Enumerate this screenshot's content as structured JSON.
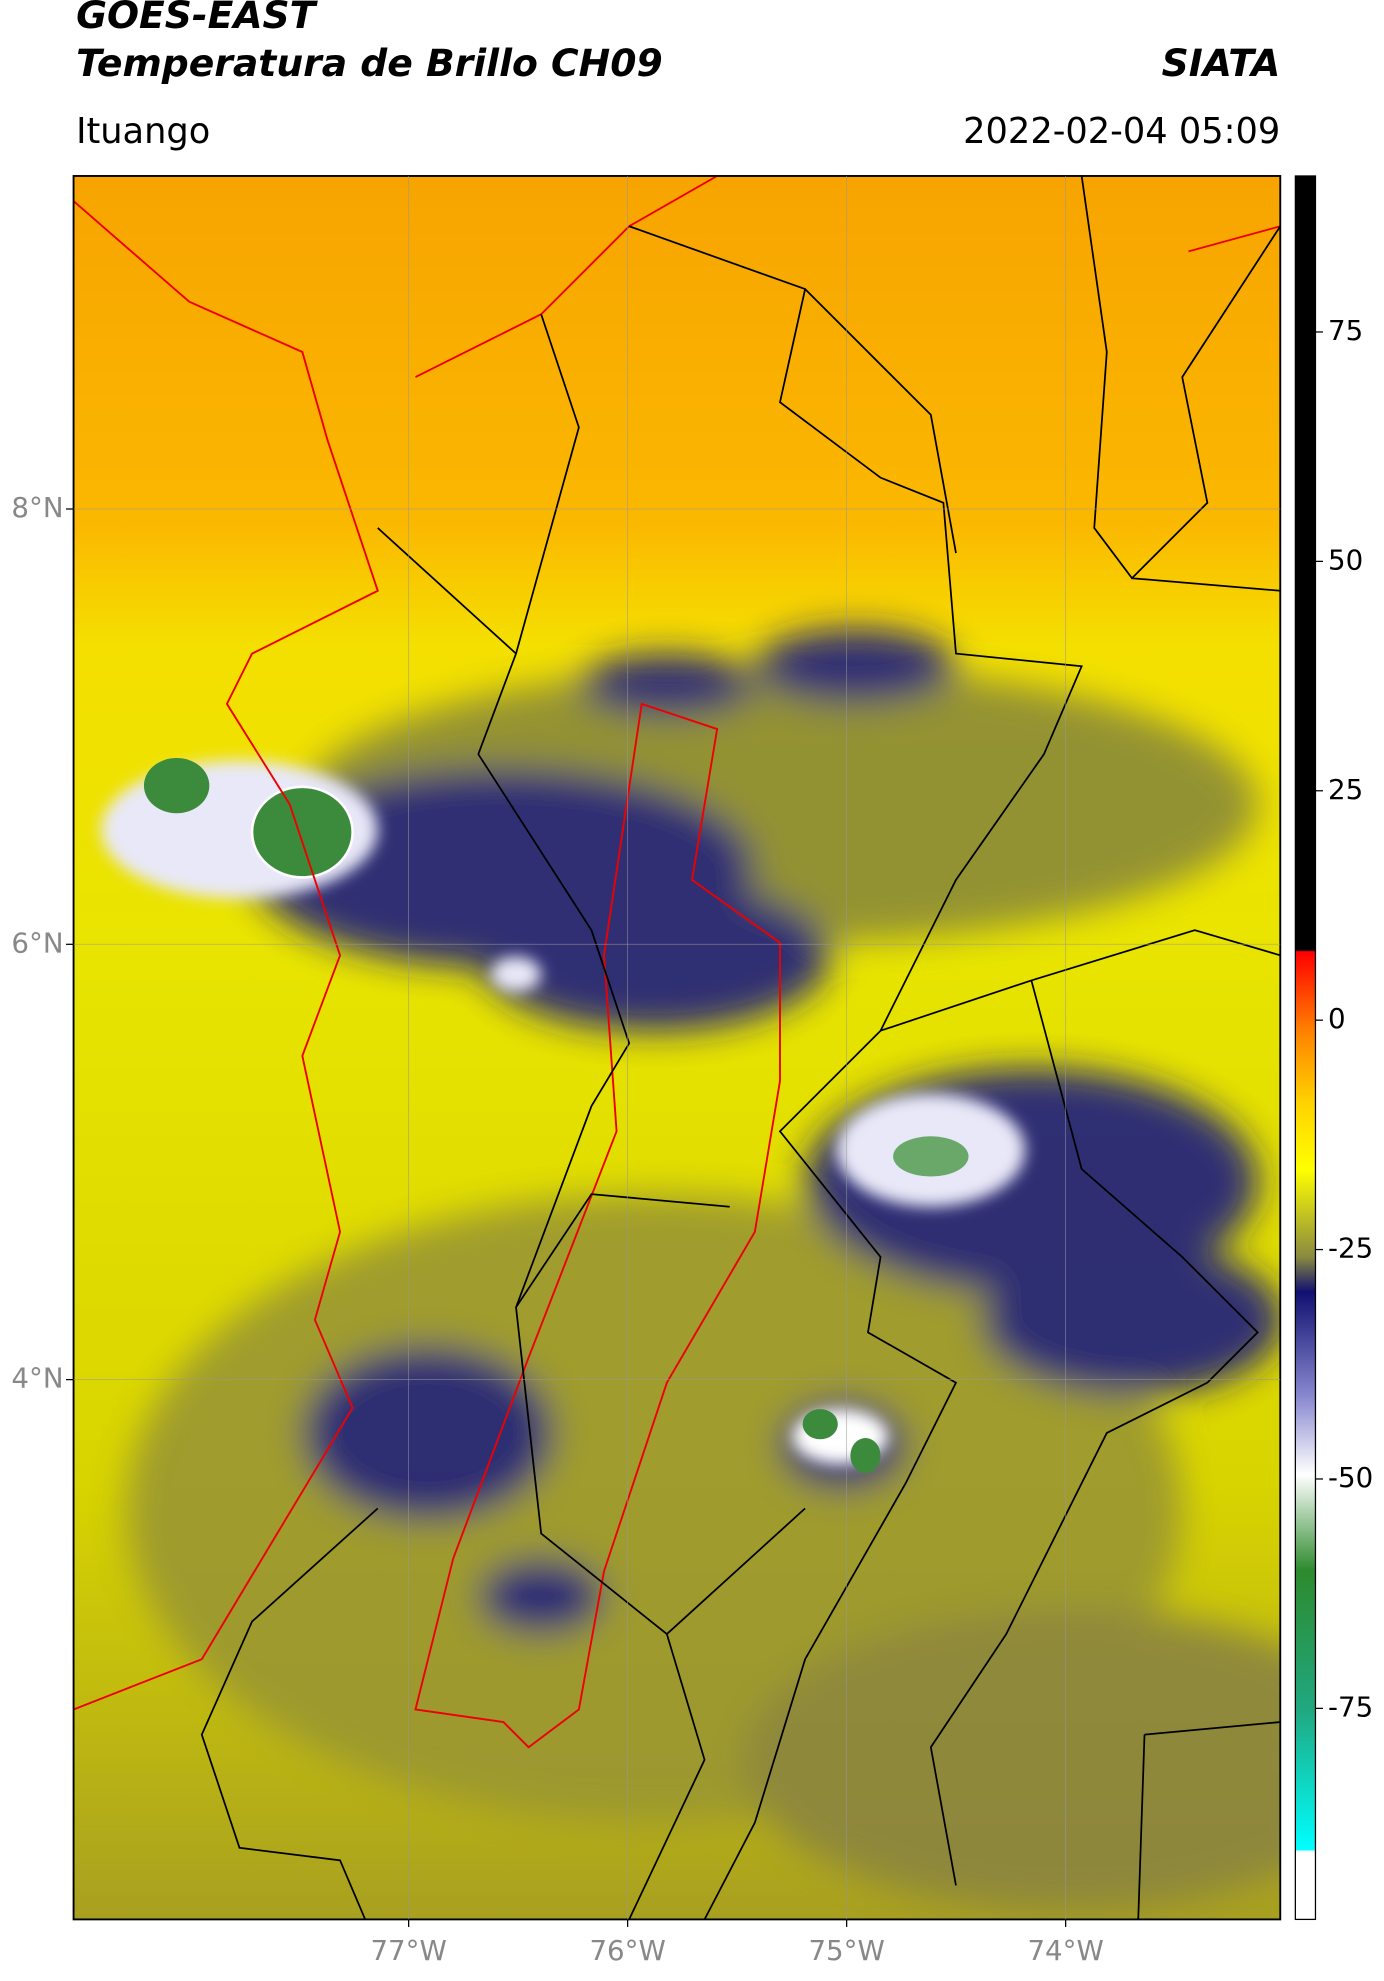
{
  "header": {
    "title": "GOES-EAST",
    "subtitle": "Temperatura de Brillo CH09",
    "source": "SIATA",
    "location": "Ituango",
    "datetime": "2022-02-04 05:09"
  },
  "map": {
    "xlim": [
      -78.53,
      -73.02
    ],
    "ylim": [
      1.52,
      9.53
    ],
    "xticks": [
      {
        "value": -77,
        "label": "77°W"
      },
      {
        "value": -76,
        "label": "76°W"
      },
      {
        "value": -75,
        "label": "75°W"
      },
      {
        "value": -74,
        "label": "74°W"
      }
    ],
    "yticks": [
      {
        "value": 8,
        "label": "8°N"
      },
      {
        "value": 6,
        "label": "6°N"
      },
      {
        "value": 4,
        "label": "4°N"
      }
    ],
    "grid": true
  },
  "colorbar": {
    "lim": [
      -98,
      92
    ],
    "ticks": [
      75,
      50,
      25,
      0,
      -25,
      -50,
      -75
    ]
  }
}
